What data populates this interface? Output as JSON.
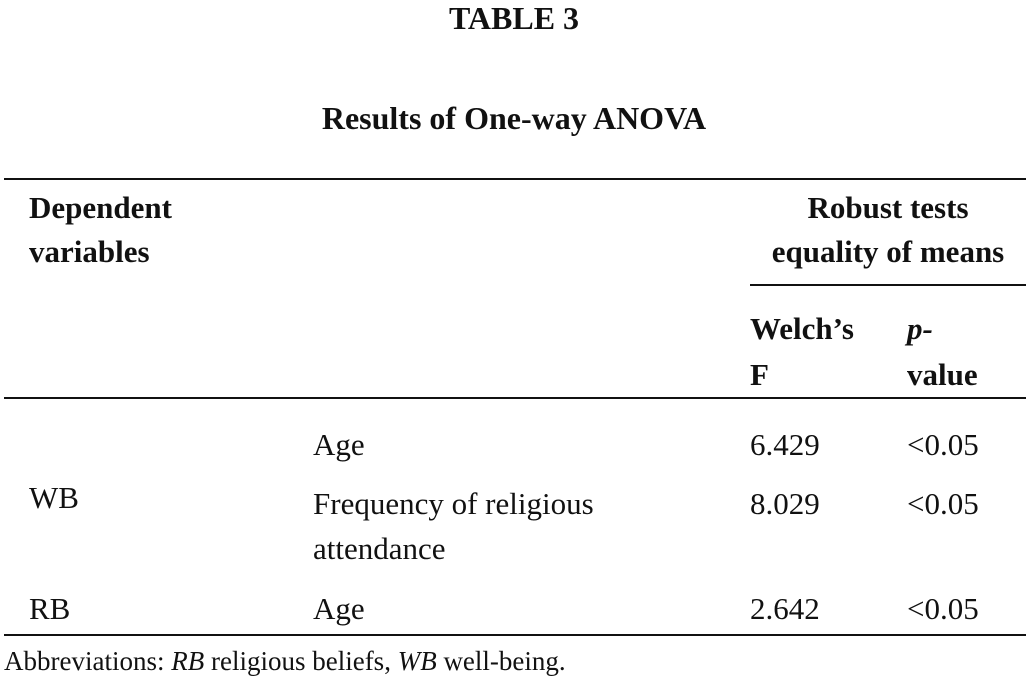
{
  "table": {
    "label": "TABLE 3",
    "title": "Results of One-way ANOVA",
    "headers": {
      "dependent_line1": "Dependent",
      "dependent_line2": "variables",
      "robust_line1": "Robust tests",
      "robust_line2": "equality of means",
      "welch_line1": "Welch’s",
      "welch_line2": "F",
      "pvalue_line1": "p-",
      "pvalue_line2": "value"
    },
    "rows": [
      {
        "group": "",
        "factor_line1": "Age",
        "factor_line2": "",
        "welch_f": "6.429",
        "p_value": "<0.05"
      },
      {
        "group": "WB",
        "factor_line1": "Frequency of religious",
        "factor_line2": "attendance",
        "welch_f": "8.029",
        "p_value": "<0.05"
      },
      {
        "group": "RB",
        "factor_line1": "Age",
        "factor_line2": "",
        "welch_f": "2.642",
        "p_value": "<0.05"
      }
    ]
  },
  "footnote": {
    "prefix": "Abbreviations: ",
    "abbr1": "RB",
    "def1": " religious beliefs, ",
    "abbr2": "WB",
    "def2": " well-being."
  }
}
